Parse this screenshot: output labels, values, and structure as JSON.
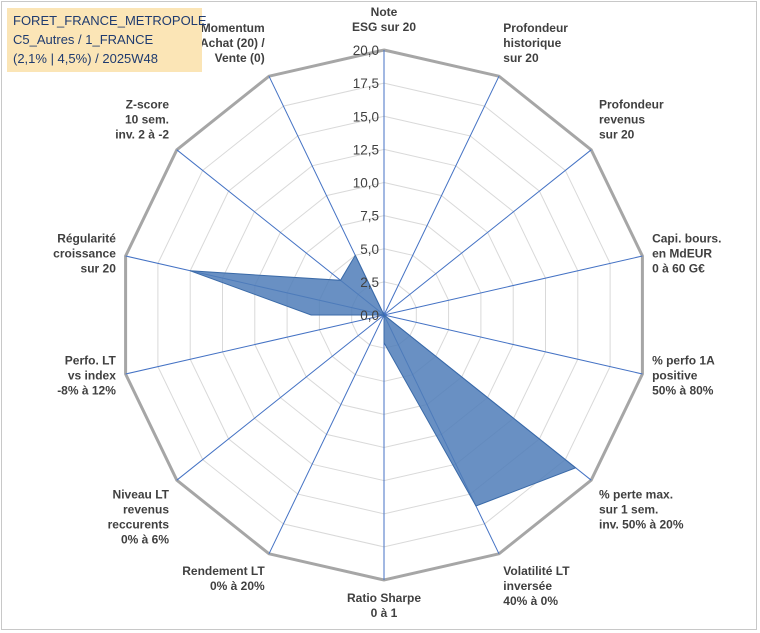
{
  "title": {
    "line1": "FORET_FRANCE_METROPOLE",
    "line2": "C5_Autres / 1_FRANCE",
    "line3": "(2,1% | 4,5%) / 2025W48"
  },
  "colors": {
    "fill": "#4f7db9",
    "axis": "#4472c4",
    "grid": "#d9d9d9",
    "outer": "#a6a6a6"
  },
  "chart_data": {
    "type": "radar",
    "rmin": 0,
    "rmax": 20,
    "ticks": [
      "0,0",
      "2,5",
      "5,0",
      "7,5",
      "10,0",
      "12,5",
      "15,0",
      "17,5",
      "20,0"
    ],
    "axes": [
      {
        "label": [
          "Note",
          "ESG sur 20"
        ],
        "value": 0
      },
      {
        "label": [
          "Profondeur",
          "historique",
          "sur 20"
        ],
        "value": 0
      },
      {
        "label": [
          "Profondeur",
          "revenus",
          "sur 20"
        ],
        "value": 0
      },
      {
        "label": [
          "Capi. bours.",
          "en MdEUR",
          "0 à 60 G€"
        ],
        "value": 0
      },
      {
        "label": [
          "% perfo 1A",
          "positive",
          "50% à 80%"
        ],
        "value": 0
      },
      {
        "label": [
          "% perte max.",
          "sur 1 sem.",
          "inv. 50% à 20%"
        ],
        "value": 18.5
      },
      {
        "label": [
          "Volatilité LT",
          "inversée",
          "40% à 0%"
        ],
        "value": 16
      },
      {
        "label": [
          "Ratio Sharpe",
          "0 à 1"
        ],
        "value": 2.1
      },
      {
        "label": [
          "Rendement LT",
          "0% à 20%"
        ],
        "value": 0
      },
      {
        "label": [
          "Niveau LT",
          "revenus",
          "reccurents",
          "0% à 6%"
        ],
        "value": 0
      },
      {
        "label": [
          "Perfo. LT",
          "vs index",
          "-8% à 12%"
        ],
        "value": 0
      },
      {
        "label": [
          "Régularité",
          "croissance",
          "sur 20"
        ],
        "value": 15
      },
      {
        "label": [
          "Z-score",
          "10 sem.",
          "inv. 2 à -2"
        ],
        "value": 4.2
      },
      {
        "label": [
          "Momentum",
          "Achat (20) /",
          "Vente (0)"
        ],
        "value": 5
      }
    ],
    "extra_points": [
      {
        "after_axis": 10,
        "value": 5.5
      }
    ]
  }
}
